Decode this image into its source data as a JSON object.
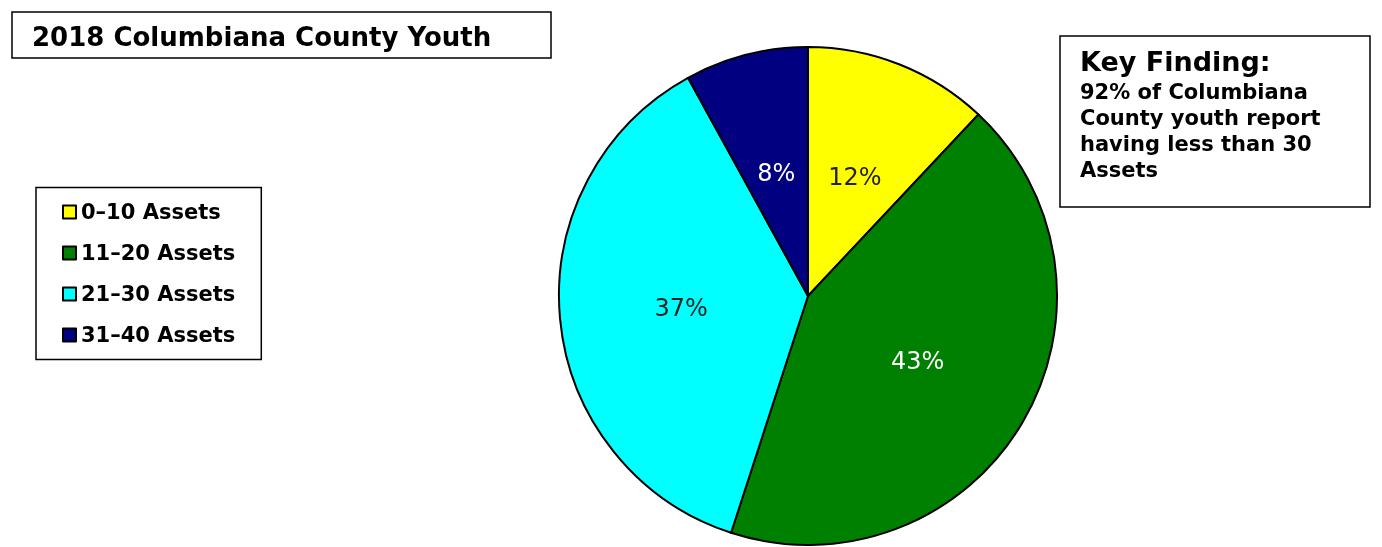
{
  "chart_data": {
    "type": "pie",
    "title": "2018 Columbiana County Youth",
    "categories": [
      "0–10 Assets",
      "11–20 Assets",
      "21–30 Assets",
      "31–40 Assets"
    ],
    "values": [
      12,
      43,
      37,
      8
    ],
    "colors": [
      "#ffff00",
      "#008000",
      "#00ffff",
      "#000080"
    ],
    "value_labels": [
      "12%",
      "43%",
      "37%",
      "8%"
    ],
    "legend": "left",
    "annotations": [
      "Key Finding:",
      "92% of Columbiana County youth report having less than 30 Assets"
    ]
  }
}
